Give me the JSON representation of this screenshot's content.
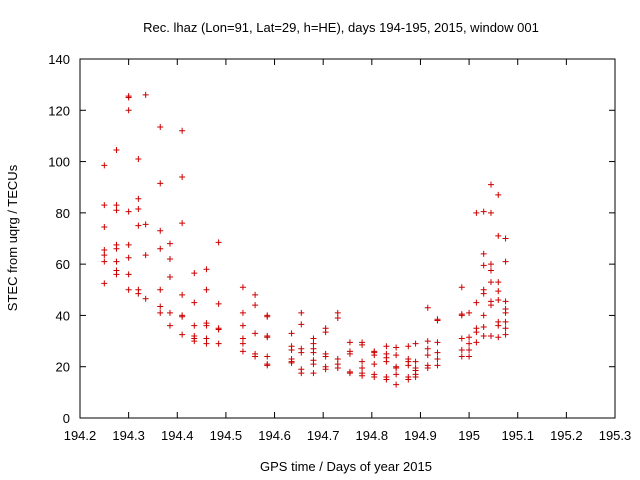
{
  "chart_data": {
    "type": "scatter",
    "title": "Rec. lhaz (Lon=91, Lat=29, h=HE), days 194-195, 2015, window 001",
    "xlabel": "GPS time / Days of year 2015",
    "ylabel": "STEC from uqrg / TECUs",
    "xlim": [
      194.2,
      195.3
    ],
    "ylim": [
      0,
      140
    ],
    "xticks": [
      "194.2",
      "194.3",
      "194.4",
      "194.5",
      "194.6",
      "194.7",
      "194.8",
      "194.9",
      "195",
      "195.1",
      "195.2",
      "195.3"
    ],
    "yticks": [
      "0",
      "20",
      "40",
      "60",
      "80",
      "100",
      "120",
      "140"
    ],
    "grid": false,
    "legend": "none",
    "marker": "+",
    "color": "#cc0000",
    "points": [
      [
        194.25,
        98.5
      ],
      [
        194.25,
        83
      ],
      [
        194.25,
        74.5
      ],
      [
        194.25,
        65.5
      ],
      [
        194.25,
        63.5
      ],
      [
        194.25,
        61
      ],
      [
        194.25,
        52.5
      ],
      [
        194.275,
        104.5
      ],
      [
        194.275,
        83
      ],
      [
        194.275,
        81
      ],
      [
        194.275,
        67.5
      ],
      [
        194.275,
        66
      ],
      [
        194.275,
        61
      ],
      [
        194.275,
        57.5
      ],
      [
        194.275,
        56
      ],
      [
        194.3,
        125.5
      ],
      [
        194.3,
        125
      ],
      [
        194.3,
        120
      ],
      [
        194.3,
        80.5
      ],
      [
        194.3,
        67.5
      ],
      [
        194.3,
        62.5
      ],
      [
        194.3,
        56
      ],
      [
        194.3,
        50
      ],
      [
        194.32,
        101
      ],
      [
        194.32,
        85.5
      ],
      [
        194.32,
        81.5
      ],
      [
        194.32,
        75
      ],
      [
        194.32,
        50
      ],
      [
        194.32,
        48.5
      ],
      [
        194.335,
        126
      ],
      [
        194.335,
        75.5
      ],
      [
        194.335,
        63.5
      ],
      [
        194.335,
        46.5
      ],
      [
        194.365,
        113.5
      ],
      [
        194.365,
        91.5
      ],
      [
        194.365,
        73
      ],
      [
        194.365,
        66
      ],
      [
        194.365,
        50
      ],
      [
        194.365,
        43.5
      ],
      [
        194.365,
        41
      ],
      [
        194.385,
        68
      ],
      [
        194.385,
        62
      ],
      [
        194.385,
        55
      ],
      [
        194.385,
        41
      ],
      [
        194.385,
        36
      ],
      [
        194.41,
        112
      ],
      [
        194.41,
        94
      ],
      [
        194.41,
        76
      ],
      [
        194.41,
        48
      ],
      [
        194.41,
        40
      ],
      [
        194.41,
        39.5
      ],
      [
        194.41,
        32.5
      ],
      [
        194.435,
        56.5
      ],
      [
        194.435,
        45
      ],
      [
        194.435,
        36
      ],
      [
        194.435,
        32
      ],
      [
        194.435,
        31
      ],
      [
        194.435,
        30
      ],
      [
        194.46,
        58
      ],
      [
        194.46,
        50
      ],
      [
        194.46,
        37
      ],
      [
        194.46,
        36
      ],
      [
        194.46,
        31
      ],
      [
        194.46,
        29
      ],
      [
        194.485,
        68.5
      ],
      [
        194.485,
        44.5
      ],
      [
        194.485,
        35
      ],
      [
        194.485,
        34.5
      ],
      [
        194.485,
        29
      ],
      [
        194.535,
        51
      ],
      [
        194.535,
        41
      ],
      [
        194.535,
        36
      ],
      [
        194.535,
        31
      ],
      [
        194.535,
        29
      ],
      [
        194.535,
        26
      ],
      [
        194.56,
        48
      ],
      [
        194.56,
        44
      ],
      [
        194.56,
        33
      ],
      [
        194.56,
        25
      ],
      [
        194.56,
        24
      ],
      [
        194.585,
        40
      ],
      [
        194.585,
        39.5
      ],
      [
        194.585,
        32
      ],
      [
        194.585,
        31.5
      ],
      [
        194.585,
        24
      ],
      [
        194.585,
        21
      ],
      [
        194.585,
        20.5
      ],
      [
        194.635,
        33
      ],
      [
        194.635,
        28
      ],
      [
        194.635,
        26.5
      ],
      [
        194.635,
        23
      ],
      [
        194.635,
        22
      ],
      [
        194.635,
        21.5
      ],
      [
        194.655,
        41
      ],
      [
        194.655,
        36.5
      ],
      [
        194.655,
        27
      ],
      [
        194.655,
        25.5
      ],
      [
        194.655,
        19
      ],
      [
        194.655,
        17.5
      ],
      [
        194.68,
        31
      ],
      [
        194.68,
        29
      ],
      [
        194.68,
        27
      ],
      [
        194.68,
        25.5
      ],
      [
        194.68,
        22.5
      ],
      [
        194.68,
        21
      ],
      [
        194.68,
        17.5
      ],
      [
        194.705,
        35
      ],
      [
        194.705,
        33.5
      ],
      [
        194.705,
        25
      ],
      [
        194.705,
        24
      ],
      [
        194.705,
        20
      ],
      [
        194.705,
        19
      ],
      [
        194.73,
        41
      ],
      [
        194.73,
        39
      ],
      [
        194.73,
        23
      ],
      [
        194.73,
        21
      ],
      [
        194.73,
        19.5
      ],
      [
        194.755,
        29.5
      ],
      [
        194.755,
        26
      ],
      [
        194.755,
        25
      ],
      [
        194.755,
        18
      ],
      [
        194.755,
        17.5
      ],
      [
        194.78,
        29.5
      ],
      [
        194.78,
        28.5
      ],
      [
        194.78,
        22
      ],
      [
        194.78,
        19.5
      ],
      [
        194.78,
        17.5
      ],
      [
        194.78,
        16.5
      ],
      [
        194.805,
        26
      ],
      [
        194.805,
        25.5
      ],
      [
        194.805,
        24.5
      ],
      [
        194.805,
        21
      ],
      [
        194.805,
        17
      ],
      [
        194.805,
        16
      ],
      [
        194.83,
        28
      ],
      [
        194.83,
        25
      ],
      [
        194.83,
        23.5
      ],
      [
        194.83,
        22
      ],
      [
        194.83,
        16
      ],
      [
        194.83,
        15
      ],
      [
        194.85,
        27.5
      ],
      [
        194.85,
        24.5
      ],
      [
        194.85,
        20
      ],
      [
        194.85,
        19.5
      ],
      [
        194.85,
        17
      ],
      [
        194.85,
        13
      ],
      [
        194.875,
        28
      ],
      [
        194.875,
        23
      ],
      [
        194.875,
        22
      ],
      [
        194.875,
        20.5
      ],
      [
        194.875,
        16
      ],
      [
        194.875,
        15
      ],
      [
        194.89,
        29
      ],
      [
        194.89,
        22
      ],
      [
        194.89,
        19.5
      ],
      [
        194.89,
        18.5
      ],
      [
        194.89,
        17
      ],
      [
        194.89,
        16
      ],
      [
        194.915,
        43
      ],
      [
        194.915,
        30
      ],
      [
        194.915,
        27
      ],
      [
        194.915,
        24.5
      ],
      [
        194.915,
        20.5
      ],
      [
        194.915,
        19.5
      ],
      [
        194.935,
        38.5
      ],
      [
        194.935,
        38
      ],
      [
        194.935,
        29.5
      ],
      [
        194.935,
        25.5
      ],
      [
        194.935,
        23
      ],
      [
        194.935,
        20.5
      ],
      [
        194.985,
        51
      ],
      [
        194.985,
        40.5
      ],
      [
        194.985,
        40
      ],
      [
        194.985,
        31
      ],
      [
        194.985,
        26.5
      ],
      [
        194.985,
        24
      ],
      [
        195.0,
        41
      ],
      [
        195.0,
        31.5
      ],
      [
        195.0,
        29
      ],
      [
        195.0,
        26.5
      ],
      [
        195.0,
        24
      ],
      [
        195.015,
        80
      ],
      [
        195.015,
        45
      ],
      [
        195.015,
        35
      ],
      [
        195.015,
        33.5
      ],
      [
        195.015,
        29.5
      ],
      [
        195.03,
        80.5
      ],
      [
        195.03,
        64
      ],
      [
        195.03,
        59.5
      ],
      [
        195.03,
        50
      ],
      [
        195.03,
        48.5
      ],
      [
        195.03,
        40
      ],
      [
        195.03,
        35.5
      ],
      [
        195.03,
        32
      ],
      [
        195.045,
        91
      ],
      [
        195.045,
        80
      ],
      [
        195.045,
        60
      ],
      [
        195.045,
        57.5
      ],
      [
        195.045,
        53
      ],
      [
        195.045,
        45.5
      ],
      [
        195.045,
        44
      ],
      [
        195.045,
        32
      ],
      [
        195.06,
        87
      ],
      [
        195.06,
        71
      ],
      [
        195.06,
        53
      ],
      [
        195.06,
        49.5
      ],
      [
        195.06,
        46
      ],
      [
        195.06,
        37.5
      ],
      [
        195.06,
        36
      ],
      [
        195.06,
        31.5
      ],
      [
        195.075,
        70
      ],
      [
        195.075,
        61
      ],
      [
        195.075,
        45.5
      ],
      [
        195.075,
        42.5
      ],
      [
        195.075,
        41
      ],
      [
        195.075,
        37.5
      ],
      [
        195.075,
        35
      ],
      [
        195.075,
        32.5
      ]
    ]
  }
}
